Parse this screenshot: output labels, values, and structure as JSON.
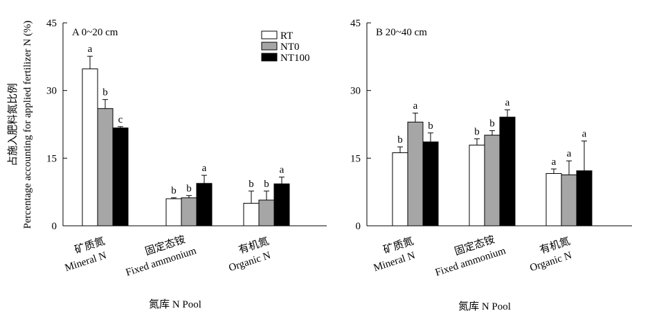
{
  "chart_data": {
    "type": "bar",
    "ylabel": "Percentage accounting for applied fertilizer N (%)",
    "ylabel_cn": "占施入肥料氮比例",
    "xlabel": "氮库 N Pool",
    "legend": [
      "RT",
      "NT0",
      "NT100"
    ],
    "legend_placement": "top-right of panel A",
    "series_colors": {
      "RT": "#ffffff",
      "NT0": "#a6a6a6",
      "NT100": "#000000"
    },
    "ylim": [
      0,
      45
    ],
    "yticks": [
      "0",
      "15",
      "30",
      "45"
    ],
    "categories": [
      {
        "cn": "矿质氮",
        "en": "Mineral N"
      },
      {
        "cn": "固定态铵",
        "en": "Fixed ammonium"
      },
      {
        "cn": "有机氮",
        "en": "Organic N"
      }
    ],
    "panels": [
      {
        "title": "A  0~20 cm",
        "series": [
          {
            "name": "RT",
            "values": [
              34.8,
              6.0,
              5.0
            ],
            "errors": [
              2.8,
              0.2,
              2.7
            ],
            "letters": [
              "a",
              "b",
              "b"
            ]
          },
          {
            "name": "NT0",
            "values": [
              26.0,
              6.2,
              5.7
            ],
            "errors": [
              2.0,
              0.5,
              2.0
            ],
            "letters": [
              "b",
              "b",
              "b"
            ]
          },
          {
            "name": "NT100",
            "values": [
              21.7,
              9.4,
              9.3
            ],
            "errors": [
              0.3,
              1.8,
              1.5
            ],
            "letters": [
              "c",
              "a",
              "a"
            ]
          }
        ]
      },
      {
        "title": "B  20~40 cm",
        "series": [
          {
            "name": "RT",
            "values": [
              16.2,
              17.9,
              11.6
            ],
            "errors": [
              1.3,
              1.4,
              1.0
            ],
            "letters": [
              "b",
              "b",
              "a"
            ]
          },
          {
            "name": "NT0",
            "values": [
              23.0,
              20.1,
              11.3
            ],
            "errors": [
              2.0,
              1.0,
              3.1
            ],
            "letters": [
              "a",
              "b",
              "a"
            ]
          },
          {
            "name": "NT100",
            "values": [
              18.6,
              24.1,
              12.2
            ],
            "errors": [
              2.0,
              1.6,
              6.6
            ],
            "letters": [
              "b",
              "a",
              "a"
            ]
          }
        ]
      }
    ]
  }
}
